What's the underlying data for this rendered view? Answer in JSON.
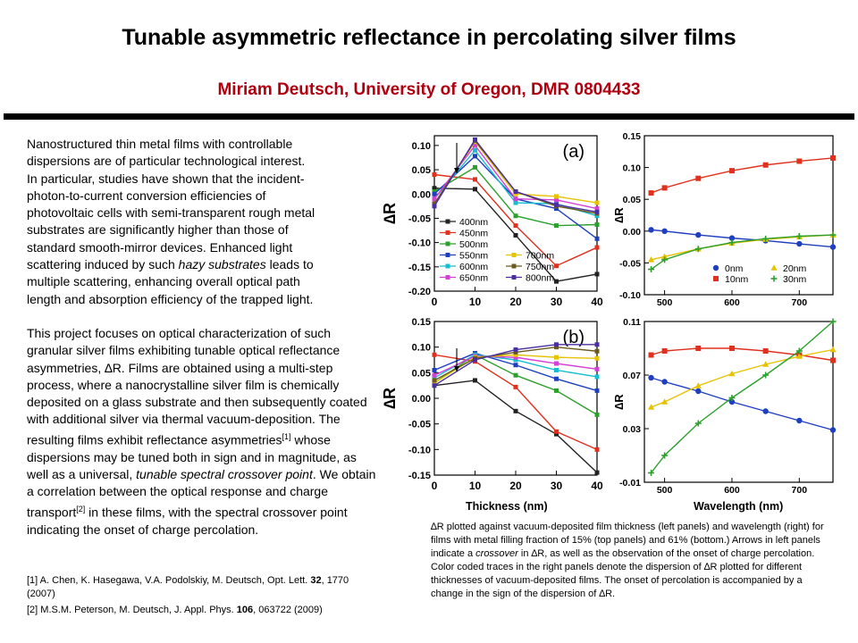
{
  "header": {
    "title": "Tunable asymmetric reflectance in percolating silver films",
    "subtitle": "Miriam Deutsch, University of Oregon, DMR 0804433"
  },
  "body": {
    "p1_lines": [
      "Nanostructured thin metal films with controllable",
      "dispersions are of particular technological interest.",
      "In particular, studies have shown that the incident-",
      "photon-to-current conversion efficiencies of",
      "photovoltaic cells with semi-transparent rough metal",
      "substrates are significantly higher than those of",
      "standard smooth-mirror devices. Enhanced light",
      "scattering induced by such ",
      "hazy substrates",
      " leads to",
      "multiple scattering, enhancing overall optical path",
      "length and absorption efficiency of the trapped light."
    ],
    "p2": {
      "a": "This project focuses on optical characterization of such granular silver films exhibiting tunable optical reflectance asymmetries, ∆R. Films are obtained using a multi-step process, where a nanocrystalline silver film is chemically deposited on a glass substrate and then subsequently coated with additional silver via thermal vacuum-deposition. The resulting films exhibit reflectance asymmetries",
      "ref1": "[1]",
      "b": " whose dispersions may be tuned both in sign and in magnitude, as well as a universal, ",
      "italic": "tunable spectral crossover point",
      "c": ". We obtain a correlation between the optical response and charge transport",
      "ref2": "[2]",
      "d": " in these films, with the spectral crossover point indicating the onset of charge percolation."
    }
  },
  "references": [
    {
      "text_a": "[1] A. Chen, K. Hasegawa, V.A. Podolskiy, M. Deutsch, Opt. Lett. ",
      "bold": "32",
      "text_b": ", 1770 (2007)"
    },
    {
      "text_a": "[2] M.S.M. Peterson, M. Deutsch,  J. Appl. Phys. ",
      "bold": "106",
      "text_b": ", 063722 (2009)"
    }
  ],
  "caption": {
    "a": "∆R plotted against vacuum-deposited film thickness (left panels) and wavelength (right) for films with metal filling fraction of 15% (top panels) and 61% (bottom.)  Arrows in left panels indicate a  ",
    "italic": "crossover",
    "b": " in ∆R, as well as the observation of the onset of charge percolation.  Color coded traces in the right panels denote the dispersion of ∆R plotted for different thicknesses of vacuum-deposited films. The onset of percolation is accompanied by a change in the sign of the dispersion of ∆R."
  },
  "axis_titles": {
    "thickness": "Thickness (nm)",
    "wavelength": "Wavelength (nm)"
  },
  "chart_data": [
    {
      "id": "a-left",
      "type": "line",
      "panel_label": "(a)",
      "ylabel": "∆R",
      "x": [
        0,
        10,
        20,
        30,
        40
      ],
      "xticks": [
        0,
        10,
        20,
        30,
        40
      ],
      "ylim": [
        -0.2,
        0.12
      ],
      "yticks": [
        -0.2,
        -0.15,
        -0.1,
        -0.05,
        0.0,
        0.05,
        0.1
      ],
      "ytick_labels": [
        "-0.20",
        "-0.15",
        "-0.10",
        "-0.05",
        "0.00",
        "0.05",
        "0.10"
      ],
      "legend": "bottom-left",
      "series": [
        {
          "name": "400nm",
          "color": "#222222",
          "values": [
            0.012,
            0.01,
            -0.085,
            -0.18,
            -0.165
          ]
        },
        {
          "name": "450nm",
          "color": "#e0301e",
          "values": [
            0.04,
            0.03,
            -0.065,
            -0.148,
            -0.11
          ]
        },
        {
          "name": "500nm",
          "color": "#2ca02c",
          "values": [
            0.005,
            0.055,
            -0.045,
            -0.065,
            -0.063
          ]
        },
        {
          "name": "550nm",
          "color": "#1f3fbf",
          "values": [
            0.0,
            0.078,
            -0.01,
            -0.03,
            -0.092
          ]
        },
        {
          "name": "600nm",
          "color": "#17becf",
          "values": [
            -0.01,
            0.09,
            -0.018,
            -0.02,
            -0.045
          ]
        },
        {
          "name": "650nm",
          "color": "#d43fd4",
          "values": [
            -0.01,
            0.1,
            -0.01,
            -0.012,
            -0.03
          ]
        },
        {
          "name": "700nm",
          "color": "#e6c200",
          "values": [
            -0.02,
            0.108,
            0.0,
            -0.005,
            -0.018
          ]
        },
        {
          "name": "750nm",
          "color": "#6b5a1e",
          "values": [
            -0.02,
            0.11,
            0.005,
            -0.025,
            -0.04
          ]
        },
        {
          "name": "800nm",
          "color": "#4a2fa0",
          "values": [
            -0.025,
            0.112,
            0.005,
            -0.022,
            -0.037
          ]
        }
      ]
    },
    {
      "id": "a-right",
      "type": "line",
      "ylabel": "∆R",
      "xticks": [
        500,
        600,
        700
      ],
      "xlim": [
        470,
        750
      ],
      "ylim": [
        -0.1,
        0.15
      ],
      "yticks": [
        -0.1,
        -0.05,
        0.0,
        0.05,
        0.1,
        0.15
      ],
      "ytick_labels": [
        "-0.10",
        "-0.05",
        "0.00",
        "0.05",
        "0.10",
        "0.15"
      ],
      "legend": "bottom",
      "series": [
        {
          "name": "0nm",
          "color": "#1f3fbf",
          "marker": "circle",
          "x": [
            480,
            500,
            550,
            600,
            650,
            700,
            750
          ],
          "values": [
            0.002,
            0.0,
            -0.006,
            -0.011,
            -0.015,
            -0.02,
            -0.025
          ]
        },
        {
          "name": "10nm",
          "color": "#e0301e",
          "marker": "square",
          "x": [
            480,
            500,
            550,
            600,
            650,
            700,
            750
          ],
          "values": [
            0.06,
            0.068,
            0.083,
            0.095,
            0.104,
            0.11,
            0.115
          ]
        },
        {
          "name": "20nm",
          "color": "#e6c200",
          "marker": "triangle",
          "x": [
            480,
            500,
            550,
            600,
            650,
            700,
            750
          ],
          "values": [
            -0.045,
            -0.04,
            -0.028,
            -0.019,
            -0.013,
            -0.009,
            -0.006
          ]
        },
        {
          "name": "30nm",
          "color": "#2ca02c",
          "marker": "cross",
          "x": [
            480,
            500,
            550,
            600,
            650,
            700,
            750
          ],
          "values": [
            -0.06,
            -0.045,
            -0.028,
            -0.018,
            -0.012,
            -0.008,
            -0.006
          ]
        }
      ]
    },
    {
      "id": "b-left",
      "type": "line",
      "panel_label": "(b)",
      "ylabel": "∆R",
      "x": [
        0,
        10,
        20,
        30,
        40
      ],
      "xticks": [
        0,
        10,
        20,
        30,
        40
      ],
      "ylim": [
        -0.15,
        0.15
      ],
      "yticks": [
        -0.15,
        -0.1,
        -0.05,
        0.0,
        0.05,
        0.1,
        0.15
      ],
      "ytick_labels": [
        "-0.15",
        "-0.10",
        "-0.05",
        "0.00",
        "0.05",
        "0.10",
        "0.15"
      ],
      "series": [
        {
          "color": "#222222",
          "values": [
            0.025,
            0.035,
            -0.025,
            -0.07,
            -0.145
          ]
        },
        {
          "color": "#e0301e",
          "values": [
            0.085,
            0.072,
            0.022,
            -0.065,
            -0.1
          ]
        },
        {
          "color": "#2ca02c",
          "values": [
            0.03,
            0.085,
            0.045,
            0.015,
            -0.032
          ]
        },
        {
          "color": "#1f3fbf",
          "values": [
            0.055,
            0.088,
            0.065,
            0.038,
            0.015
          ]
        },
        {
          "color": "#17becf",
          "values": [
            0.04,
            0.085,
            0.075,
            0.055,
            0.042
          ]
        },
        {
          "color": "#d43fd4",
          "values": [
            0.045,
            0.082,
            0.08,
            0.068,
            0.057
          ]
        },
        {
          "color": "#e6c200",
          "values": [
            0.03,
            0.08,
            0.085,
            0.08,
            0.078
          ]
        },
        {
          "color": "#6b5a1e",
          "values": [
            0.035,
            0.078,
            0.09,
            0.1,
            0.092
          ]
        },
        {
          "color": "#4a2fa0",
          "values": [
            0.025,
            0.075,
            0.095,
            0.105,
            0.105
          ]
        }
      ]
    },
    {
      "id": "b-right",
      "type": "line",
      "ylabel": "∆R",
      "xticks": [
        500,
        600,
        700
      ],
      "xlim": [
        470,
        750
      ],
      "ylim": [
        -0.01,
        0.11
      ],
      "yticks": [
        -0.01,
        0.03,
        0.07,
        0.11
      ],
      "ytick_labels": [
        "-0.01",
        "0.03",
        "0.07",
        "0.11"
      ],
      "series": [
        {
          "color": "#1f3fbf",
          "marker": "circle",
          "x": [
            480,
            500,
            550,
            600,
            650,
            700,
            750
          ],
          "values": [
            0.068,
            0.065,
            0.058,
            0.05,
            0.043,
            0.036,
            0.029
          ]
        },
        {
          "color": "#e0301e",
          "marker": "square",
          "x": [
            480,
            500,
            550,
            600,
            650,
            700,
            750
          ],
          "values": [
            0.085,
            0.088,
            0.09,
            0.09,
            0.088,
            0.085,
            0.081
          ]
        },
        {
          "color": "#e6c200",
          "marker": "triangle",
          "x": [
            480,
            500,
            550,
            600,
            650,
            700,
            750
          ],
          "values": [
            0.046,
            0.05,
            0.062,
            0.071,
            0.078,
            0.084,
            0.089
          ]
        },
        {
          "color": "#2ca02c",
          "marker": "cross",
          "x": [
            480,
            500,
            550,
            600,
            650,
            700,
            750
          ],
          "values": [
            -0.003,
            0.01,
            0.034,
            0.053,
            0.07,
            0.088,
            0.11
          ]
        }
      ]
    }
  ]
}
